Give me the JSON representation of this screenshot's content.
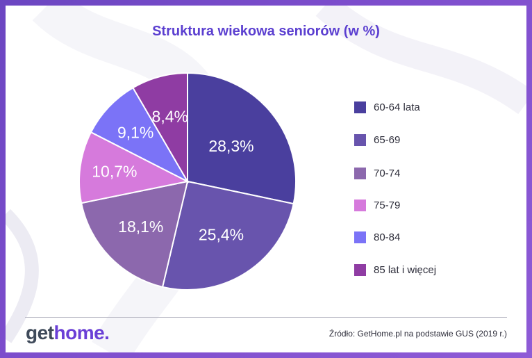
{
  "chart_data": {
    "type": "pie",
    "title": "Struktura wiekowa seniorów (w %)",
    "categories": [
      "60-64 lata",
      "65-69",
      "70-74",
      "75-79",
      "80-84",
      "85 lat i więcej"
    ],
    "values": [
      28.3,
      25.4,
      18.1,
      10.7,
      9.1,
      8.4
    ],
    "labels": [
      "28,3%",
      "25,4%",
      "18,1%",
      "10,7%",
      "9,1%",
      "8,4%"
    ],
    "colors": [
      "#4a3f9e",
      "#6854ad",
      "#8c68ad",
      "#d67adc",
      "#7b73f7",
      "#8f3ca3"
    ],
    "legend_position": "right"
  },
  "footer": {
    "logo_get": "get",
    "logo_home": "home.",
    "source": "Źródło: GetHome.pl na podstawie GUS (2019 r.)"
  }
}
